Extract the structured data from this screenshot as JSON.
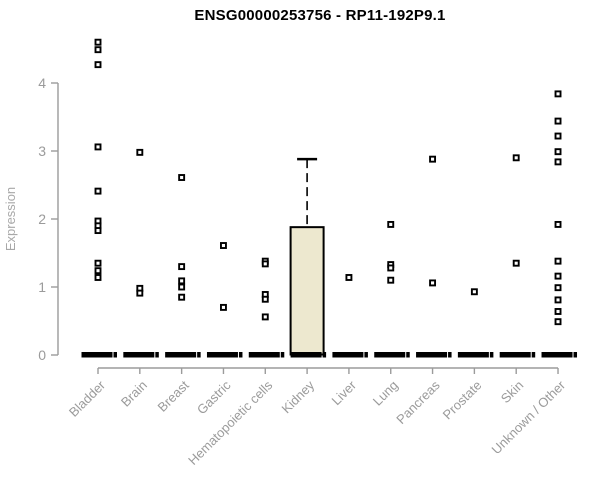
{
  "chart_data": {
    "type": "scatter",
    "subtype": "boxplot-with-points",
    "title": "ENSG00000253756 - RP11-192P9.1",
    "xlabel": "",
    "ylabel": "Expression",
    "ylim": [
      0,
      4.7
    ],
    "yticks": [
      0,
      1,
      2,
      3,
      4
    ],
    "grid": false,
    "legend_position": "none",
    "categories": [
      "Bladder",
      "Brain",
      "Breast",
      "Gastric",
      "Hematopoietic cells",
      "Kidney",
      "Liver",
      "Lung",
      "Pancreas",
      "Prostate",
      "Skin",
      "Unknown / Other"
    ],
    "series": [
      {
        "name": "Bladder",
        "values": [
          4.6,
          4.49,
          4.27,
          3.06,
          2.41,
          1.97,
          1.9,
          1.83,
          1.35,
          1.24,
          1.14
        ]
      },
      {
        "name": "Brain",
        "values": [
          2.98,
          0.98,
          0.91
        ]
      },
      {
        "name": "Breast",
        "values": [
          2.61,
          1.3,
          1.09,
          1.0,
          0.85
        ]
      },
      {
        "name": "Gastric",
        "values": [
          1.61,
          0.7
        ]
      },
      {
        "name": "Hematopoietic cells",
        "values": [
          1.38,
          1.34,
          0.89,
          0.82,
          0.56
        ]
      },
      {
        "name": "Kidney",
        "values": []
      },
      {
        "name": "Liver",
        "values": [
          1.14
        ]
      },
      {
        "name": "Lung",
        "values": [
          1.92,
          1.33,
          1.28,
          1.1
        ]
      },
      {
        "name": "Pancreas",
        "values": [
          2.88,
          1.06
        ]
      },
      {
        "name": "Prostate",
        "values": [
          0.93
        ]
      },
      {
        "name": "Skin",
        "values": [
          2.9,
          1.35
        ]
      },
      {
        "name": "Unknown / Other",
        "values": [
          3.84,
          3.44,
          3.22,
          2.99,
          2.84,
          1.92,
          1.38,
          1.16,
          0.99,
          0.81,
          0.64,
          0.49
        ]
      }
    ],
    "zero_bars": {
      "value": 0,
      "note": "thick black median/box bar at expression 0 under every category"
    },
    "boxplot": {
      "category": "Kidney",
      "q1": 0,
      "median": 0,
      "q3": 1.88,
      "lower_whisker": 0,
      "upper_whisker": 2.88
    },
    "colors": {
      "point": "#000000",
      "point_center": "#ffffff",
      "axis": "#9b9b9b",
      "tick_label": "#9b9b9b",
      "axis_label": "#a8a8a8",
      "title": "#000000",
      "zero_bar": "#000000",
      "box_fill": "#ede8cf",
      "box_border": "#000000"
    }
  }
}
